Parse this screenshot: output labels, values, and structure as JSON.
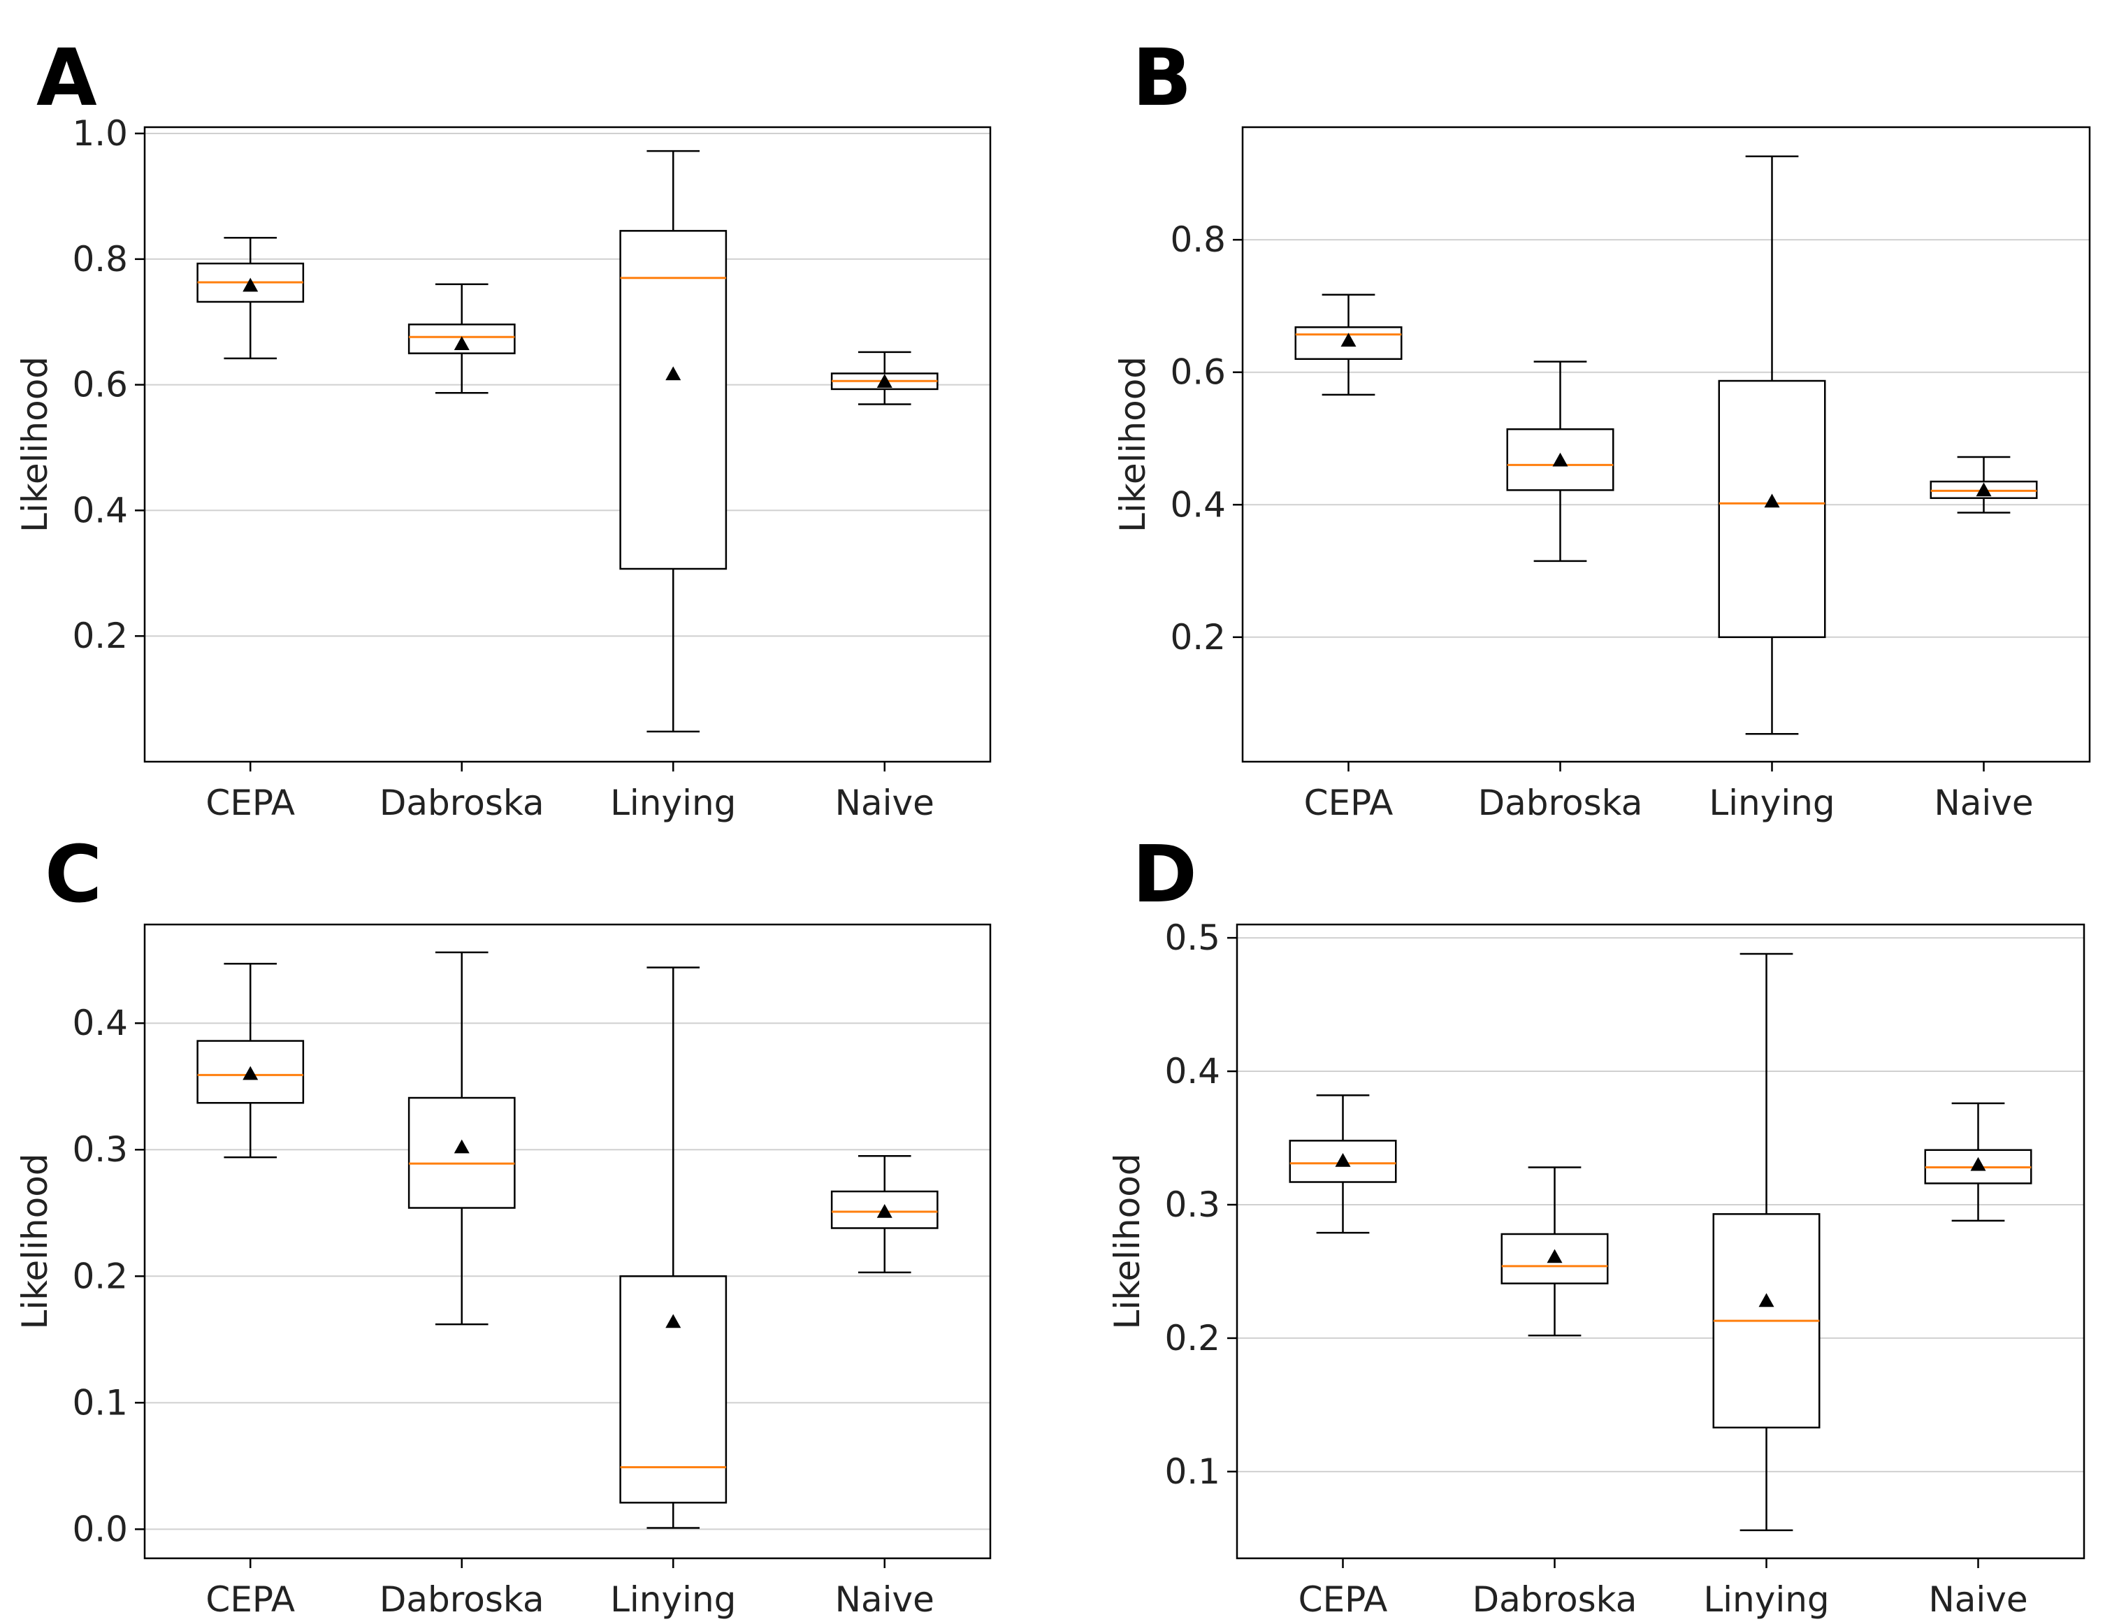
{
  "colors": {
    "median": "#ff7f0e",
    "box": "#000000",
    "grid": "#d0d0d0",
    "mean_marker": "#000000"
  },
  "chart_data": [
    {
      "panel": "A",
      "type": "box",
      "ylabel": "Likelihood",
      "ylim": [
        0.0,
        1.01
      ],
      "yticks": [
        0.2,
        0.4,
        0.6,
        0.8,
        1.0
      ],
      "ytick_labels": [
        "0.2",
        "0.4",
        "0.6",
        "0.8",
        "1.0"
      ],
      "grid": "horizontal",
      "mean_marker": "triangle",
      "categories": [
        "CEPA",
        "Dabroska",
        "Linying",
        "Naive"
      ],
      "boxes": [
        {
          "whislo": 0.642,
          "q1": 0.732,
          "med": 0.763,
          "q3": 0.793,
          "whishi": 0.834,
          "mean": 0.758
        },
        {
          "whislo": 0.587,
          "q1": 0.65,
          "med": 0.676,
          "q3": 0.696,
          "whishi": 0.76,
          "mean": 0.665
        },
        {
          "whislo": 0.048,
          "q1": 0.307,
          "med": 0.77,
          "q3": 0.845,
          "whishi": 0.972,
          "mean": 0.617
        },
        {
          "whislo": 0.569,
          "q1": 0.593,
          "med": 0.606,
          "q3": 0.618,
          "whishi": 0.652,
          "mean": 0.605
        }
      ]
    },
    {
      "panel": "B",
      "type": "box",
      "ylabel": "Likelihood",
      "ylim": [
        0.012,
        0.97
      ],
      "yticks": [
        0.2,
        0.4,
        0.6,
        0.8
      ],
      "ytick_labels": [
        "0.2",
        "0.4",
        "0.6",
        "0.8"
      ],
      "grid": "horizontal",
      "mean_marker": "triangle",
      "categories": [
        "CEPA",
        "Dabroska",
        "Linying",
        "Naive"
      ],
      "boxes": [
        {
          "whislo": 0.566,
          "q1": 0.62,
          "med": 0.657,
          "q3": 0.668,
          "whishi": 0.717,
          "mean": 0.648
        },
        {
          "whislo": 0.315,
          "q1": 0.422,
          "med": 0.46,
          "q3": 0.514,
          "whishi": 0.616,
          "mean": 0.467
        },
        {
          "whislo": 0.054,
          "q1": 0.2,
          "med": 0.402,
          "q3": 0.587,
          "whishi": 0.926,
          "mean": 0.405
        },
        {
          "whislo": 0.388,
          "q1": 0.41,
          "med": 0.421,
          "q3": 0.435,
          "whishi": 0.472,
          "mean": 0.422
        }
      ]
    },
    {
      "panel": "C",
      "type": "box",
      "ylabel": "Likelihood",
      "ylim": [
        -0.023,
        0.478
      ],
      "yticks": [
        0.0,
        0.1,
        0.2,
        0.3,
        0.4
      ],
      "ytick_labels": [
        "0.0",
        "0.1",
        "0.2",
        "0.3",
        "0.4"
      ],
      "grid": "horizontal",
      "mean_marker": "triangle",
      "categories": [
        "CEPA",
        "Dabroska",
        "Linying",
        "Naive"
      ],
      "boxes": [
        {
          "whislo": 0.294,
          "q1": 0.337,
          "med": 0.359,
          "q3": 0.386,
          "whishi": 0.447,
          "mean": 0.36
        },
        {
          "whislo": 0.162,
          "q1": 0.254,
          "med": 0.289,
          "q3": 0.341,
          "whishi": 0.456,
          "mean": 0.302
        },
        {
          "whislo": 0.001,
          "q1": 0.021,
          "med": 0.049,
          "q3": 0.2,
          "whishi": 0.444,
          "mean": 0.164
        },
        {
          "whislo": 0.203,
          "q1": 0.238,
          "med": 0.251,
          "q3": 0.267,
          "whishi": 0.295,
          "mean": 0.251
        }
      ]
    },
    {
      "panel": "D",
      "type": "box",
      "ylabel": "Likelihood",
      "ylim": [
        0.035,
        0.51
      ],
      "yticks": [
        0.1,
        0.2,
        0.3,
        0.4,
        0.5
      ],
      "ytick_labels": [
        "0.1",
        "0.2",
        "0.3",
        "0.4",
        "0.5"
      ],
      "grid": "horizontal",
      "mean_marker": "triangle",
      "categories": [
        "CEPA",
        "Dabroska",
        "Linying",
        "Naive"
      ],
      "boxes": [
        {
          "whislo": 0.279,
          "q1": 0.317,
          "med": 0.331,
          "q3": 0.348,
          "whishi": 0.382,
          "mean": 0.333
        },
        {
          "whislo": 0.202,
          "q1": 0.241,
          "med": 0.254,
          "q3": 0.278,
          "whishi": 0.328,
          "mean": 0.261
        },
        {
          "whislo": 0.056,
          "q1": 0.133,
          "med": 0.213,
          "q3": 0.293,
          "whishi": 0.488,
          "mean": 0.228
        },
        {
          "whislo": 0.288,
          "q1": 0.316,
          "med": 0.328,
          "q3": 0.341,
          "whishi": 0.376,
          "mean": 0.33
        }
      ]
    }
  ]
}
